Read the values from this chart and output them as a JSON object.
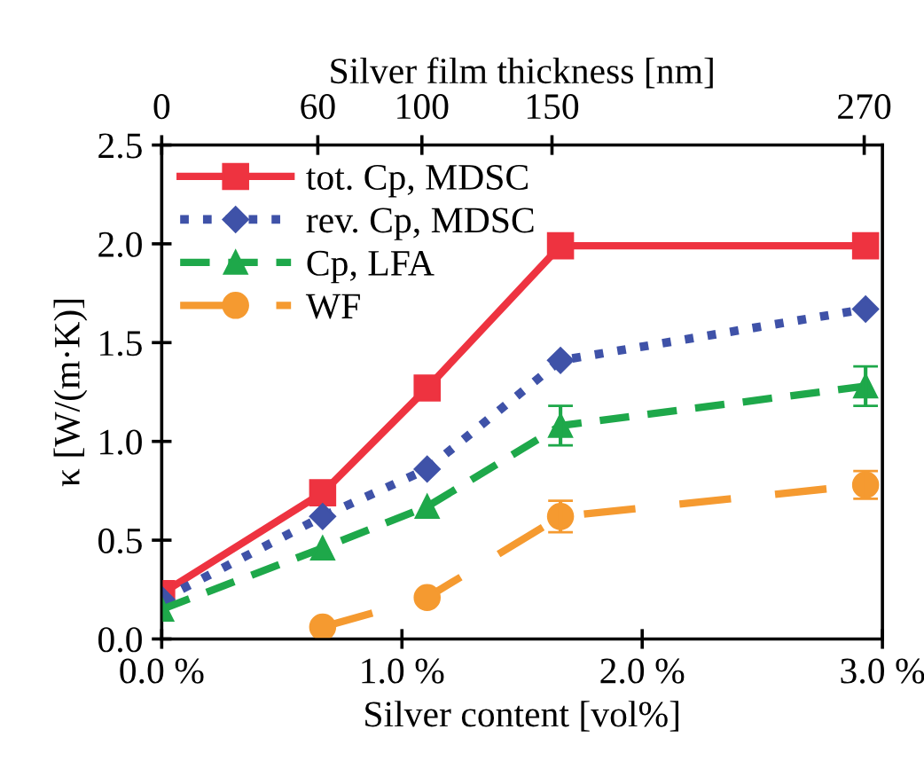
{
  "chart_data": {
    "type": "line",
    "xlabel": "Silver content [vol%]",
    "ylabel": "κ [W/(m·K)]",
    "x2label": "Silver film thickness [nm]",
    "xlim": [
      0.0,
      3.0
    ],
    "xticks": [
      {
        "value": 0.0,
        "label": "0.0 %"
      },
      {
        "value": 1.0,
        "label": "1.0 %"
      },
      {
        "value": 2.0,
        "label": "2.0 %"
      },
      {
        "value": 3.0,
        "label": "3.0 %"
      }
    ],
    "x2lim": [
      0,
      277
    ],
    "x2ticks": [
      0,
      60,
      100,
      150,
      270
    ],
    "ylim": [
      0.0,
      2.5
    ],
    "yticks": [
      {
        "value": 0,
        "label": "0.0"
      },
      0.5,
      {
        "value": 1,
        "label": "1.0"
      },
      1.5,
      {
        "value": 2,
        "label": "2.0"
      },
      2.5
    ],
    "grid": false,
    "legend": "top left",
    "series": [
      {
        "name": "tot. Cp, MDSC",
        "color": "#ee3340",
        "marker": "square",
        "line_style": "solid",
        "x": [
          0.0,
          0.67,
          1.105,
          1.66,
          2.93
        ],
        "values": [
          0.23,
          0.74,
          1.27,
          1.99,
          1.99
        ]
      },
      {
        "name": "rev. Cp, MDSC",
        "color": "#3f52a8",
        "marker": "diamond",
        "line_style": "dotted",
        "x": [
          0.0,
          0.67,
          1.105,
          1.66,
          2.93
        ],
        "values": [
          0.2,
          0.62,
          0.86,
          1.41,
          1.67
        ]
      },
      {
        "name": "Cp, LFA",
        "color": "#1ea84a",
        "marker": "triangle",
        "line_style": "dashed",
        "x": [
          0.0,
          0.67,
          1.105,
          1.66,
          2.93
        ],
        "values": [
          0.15,
          0.46,
          0.67,
          1.08,
          1.28
        ],
        "errors": [
          null,
          null,
          null,
          0.1,
          0.1
        ]
      },
      {
        "name": "WF",
        "color": "#f59a30",
        "marker": "circle",
        "line_style": "dashed",
        "x": [
          0.67,
          1.105,
          1.66,
          2.93
        ],
        "values": [
          0.06,
          0.21,
          0.62,
          0.78
        ],
        "errors": [
          null,
          null,
          0.08,
          0.07
        ]
      }
    ]
  }
}
